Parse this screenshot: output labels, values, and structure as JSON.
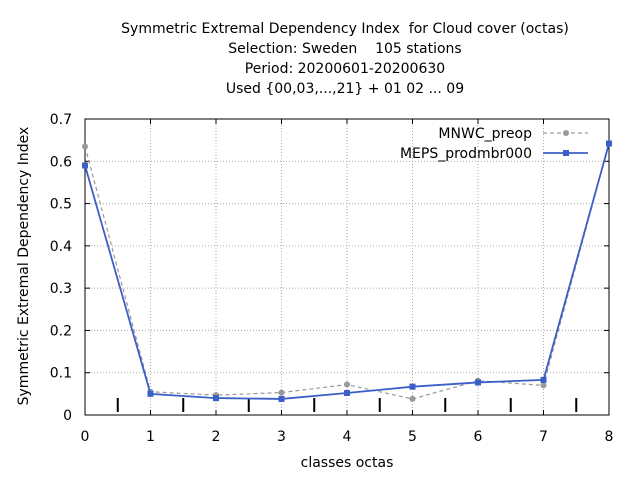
{
  "chart_data": {
    "type": "line",
    "title_lines": [
      "Symmetric Extremal Dependency Index  for Cloud cover (octas)",
      "Selection: Sweden    105 stations",
      "Period: 20200601-20200630",
      "Used {00,03,...,21} + 01 02 ... 09"
    ],
    "xlabel": "classes octas",
    "ylabel": "Symmetric Extremal Dependency Index",
    "x": [
      0,
      1,
      2,
      3,
      4,
      5,
      6,
      7,
      8
    ],
    "xlim": [
      0,
      8
    ],
    "ylim": [
      0,
      0.7
    ],
    "xticks": [
      "0",
      "1",
      "2",
      "3",
      "4",
      "5",
      "6",
      "7",
      "8"
    ],
    "yticks": [
      "0",
      "0.1",
      "0.2",
      "0.3",
      "0.4",
      "0.5",
      "0.6",
      "0.7"
    ],
    "grid": true,
    "legend_position": "top-right",
    "series": [
      {
        "name": "MNWC_preop",
        "color": "#999999",
        "dashed": true,
        "marker": "circle",
        "values": [
          0.635,
          0.055,
          0.047,
          0.053,
          0.072,
          0.038,
          0.081,
          0.07,
          0.642
        ]
      },
      {
        "name": "MEPS_prodmbr000",
        "color": "#3b5fc8",
        "dashed": false,
        "marker": "square",
        "values": [
          0.59,
          0.05,
          0.04,
          0.038,
          0.052,
          0.067,
          0.077,
          0.083,
          0.642
        ]
      }
    ],
    "bottom_ticks_at": [
      0.5,
      1.5,
      2.5,
      3.5,
      4.5,
      5.5,
      6.5,
      7.5
    ]
  }
}
